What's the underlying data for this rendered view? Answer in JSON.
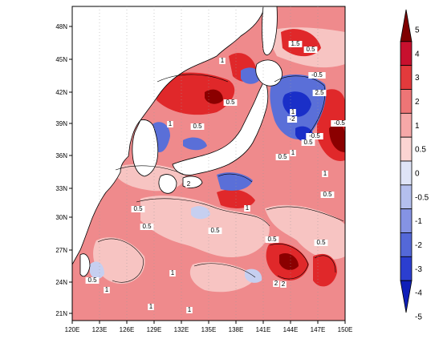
{
  "map": {
    "lat_ticks": [
      "48N",
      "45N",
      "42N",
      "39N",
      "36N",
      "33N",
      "30N",
      "27N",
      "24N",
      "21N"
    ],
    "lon_ticks": [
      "120E",
      "123E",
      "126E",
      "129E",
      "132E",
      "135E",
      "138E",
      "141E",
      "144E",
      "147E",
      "150E"
    ],
    "contour_labels": [
      "1.5",
      "0.5",
      "1",
      "-0.5",
      "2.5",
      "0.5",
      "-2",
      "-0.5",
      "1",
      "0.5",
      "1",
      "-0.5",
      "0.5",
      "1",
      "0.5",
      "1",
      "2",
      "0.5",
      "1",
      "0.5",
      "0.5",
      "0.5",
      "0.5",
      "1",
      "2",
      "0.5",
      "1",
      "1",
      "0.5",
      "1",
      "2"
    ],
    "colors": {
      "deep_red": "#8b0000",
      "red": "#e0282a",
      "light_red": "#ef8a8c",
      "pink": "#f7c4c2",
      "very_light": "#fbe3e0",
      "light_blue": "#c6cff0",
      "blue": "#5a6fd8",
      "deep_blue": "#1a2fc8",
      "land": "#ffffff"
    }
  },
  "colorbar": {
    "labels": [
      "5",
      "4",
      "3",
      "2",
      "1",
      "0.5",
      "0",
      "-0.5",
      "-1",
      "-2",
      "-3",
      "-4",
      "-5"
    ],
    "colors": [
      "#7f0000",
      "#c8102e",
      "#e33a3c",
      "#ee7576",
      "#f6a8a8",
      "#fbd4d2",
      "#dfe4f7",
      "#b4bfee",
      "#8593e4",
      "#5468d8",
      "#2b3ed0",
      "#0f1fb8"
    ]
  }
}
